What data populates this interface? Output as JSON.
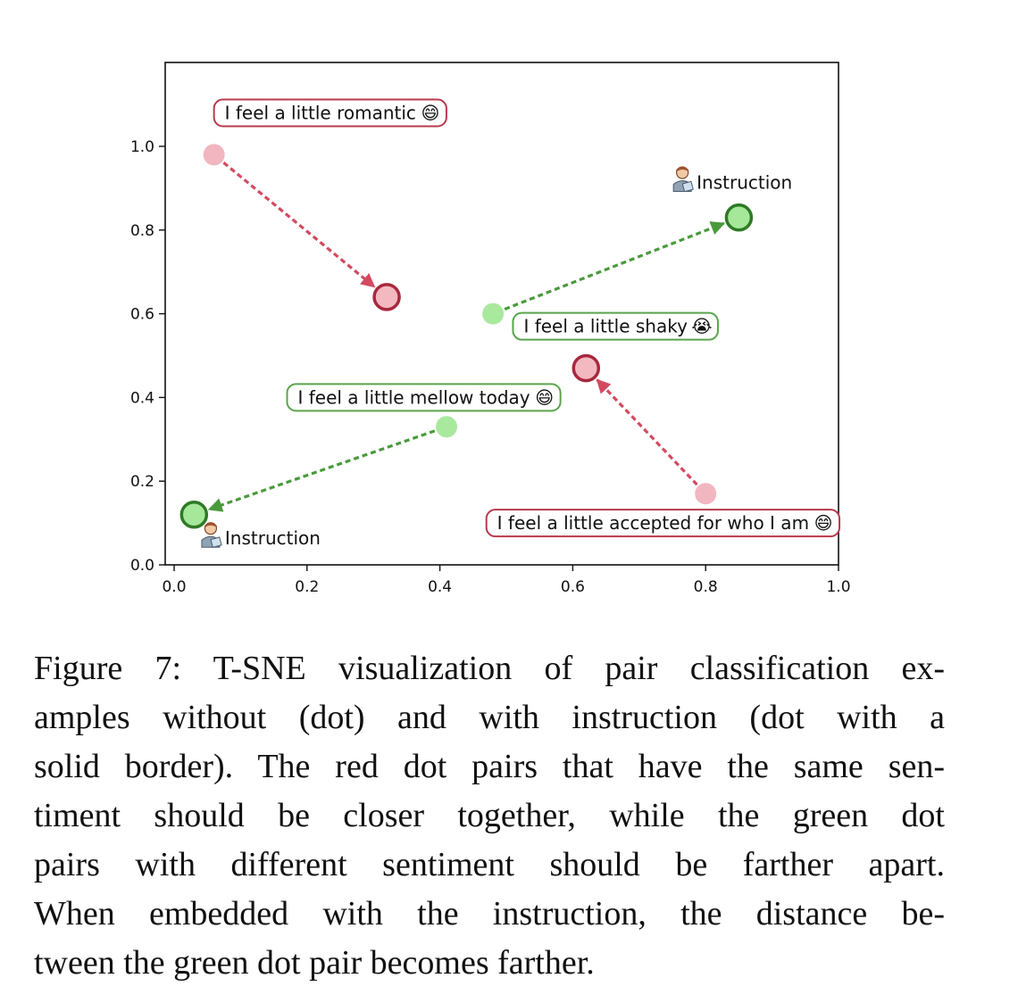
{
  "chart_data": {
    "type": "scatter",
    "title": "",
    "xlabel": "",
    "ylabel": "",
    "xlim": [
      0.0,
      1.0
    ],
    "ylim": [
      0.0,
      1.0
    ],
    "xticks": [
      "0.0",
      "0.2",
      "0.4",
      "0.6",
      "0.8",
      "1.0"
    ],
    "yticks": [
      "0.0",
      "0.2",
      "0.4",
      "0.6",
      "0.8",
      "1.0"
    ],
    "grid": false,
    "legend": "none",
    "colors": {
      "red_fill": "#f4b8c1",
      "red_plain": "#f2b6c0",
      "red_edge": "#a8283d",
      "red_arrow": "#d24a60",
      "green_fill": "#a6e89a",
      "green_plain": "#a9e99e",
      "green_edge": "#2f7a26",
      "green_arrow": "#4a9a3c",
      "red_box": "#b83a4e",
      "green_box": "#5aa44c"
    },
    "points": [
      {
        "id": "red-1-plain",
        "x": 0.06,
        "y": 0.98,
        "group": "red",
        "instruction": false
      },
      {
        "id": "red-1-instr",
        "x": 0.32,
        "y": 0.64,
        "group": "red",
        "instruction": true
      },
      {
        "id": "red-2-plain",
        "x": 0.8,
        "y": 0.17,
        "group": "red",
        "instruction": false
      },
      {
        "id": "red-2-instr",
        "x": 0.62,
        "y": 0.47,
        "group": "red",
        "instruction": true
      },
      {
        "id": "green-1-plain",
        "x": 0.48,
        "y": 0.6,
        "group": "green",
        "instruction": false
      },
      {
        "id": "green-1-instr",
        "x": 0.85,
        "y": 0.83,
        "group": "green",
        "instruction": true
      },
      {
        "id": "green-2-plain",
        "x": 0.41,
        "y": 0.33,
        "group": "green",
        "instruction": false
      },
      {
        "id": "green-2-instr",
        "x": 0.03,
        "y": 0.12,
        "group": "green",
        "instruction": true
      }
    ],
    "arrows": [
      {
        "from": "red-1-plain",
        "to": "red-1-instr",
        "group": "red"
      },
      {
        "from": "red-2-plain",
        "to": "red-2-instr",
        "group": "red"
      },
      {
        "from": "green-1-plain",
        "to": "green-1-instr",
        "group": "green"
      },
      {
        "from": "green-2-plain",
        "to": "green-2-instr",
        "group": "green"
      }
    ],
    "annotations": [
      {
        "id": "romantic",
        "text": "I feel a little romantic",
        "emoji": "😄",
        "group": "red",
        "x": 0.06,
        "y": 1.08
      },
      {
        "id": "shaky",
        "text": "I feel a little shaky",
        "emoji": "😭",
        "group": "green",
        "x": 0.51,
        "y": 0.57
      },
      {
        "id": "mellow",
        "text": "I feel a little mellow today",
        "emoji": "😄",
        "group": "green",
        "x": 0.17,
        "y": 0.4
      },
      {
        "id": "accepted",
        "text": "I feel a little accepted for who I am",
        "emoji": "😄",
        "group": "red",
        "x": 0.47,
        "y": 0.1
      }
    ],
    "instruction_labels": [
      {
        "id": "instr-top",
        "text": "Instruction",
        "x": 0.765,
        "y": 0.905
      },
      {
        "id": "instr-bottom",
        "text": "Instruction",
        "x": 0.055,
        "y": 0.055
      }
    ]
  },
  "caption": {
    "lines": [
      "Figure 7: T-SNE visualization of pair classification ex-",
      "amples without (dot) and with instruction (dot with a",
      "solid border). The red dot pairs that have the same sen-",
      "timent should be closer together, while the green dot",
      "pairs with different sentiment should be farther apart.",
      "When embedded with the instruction, the distance be-",
      "tween the green dot pair becomes farther."
    ]
  }
}
